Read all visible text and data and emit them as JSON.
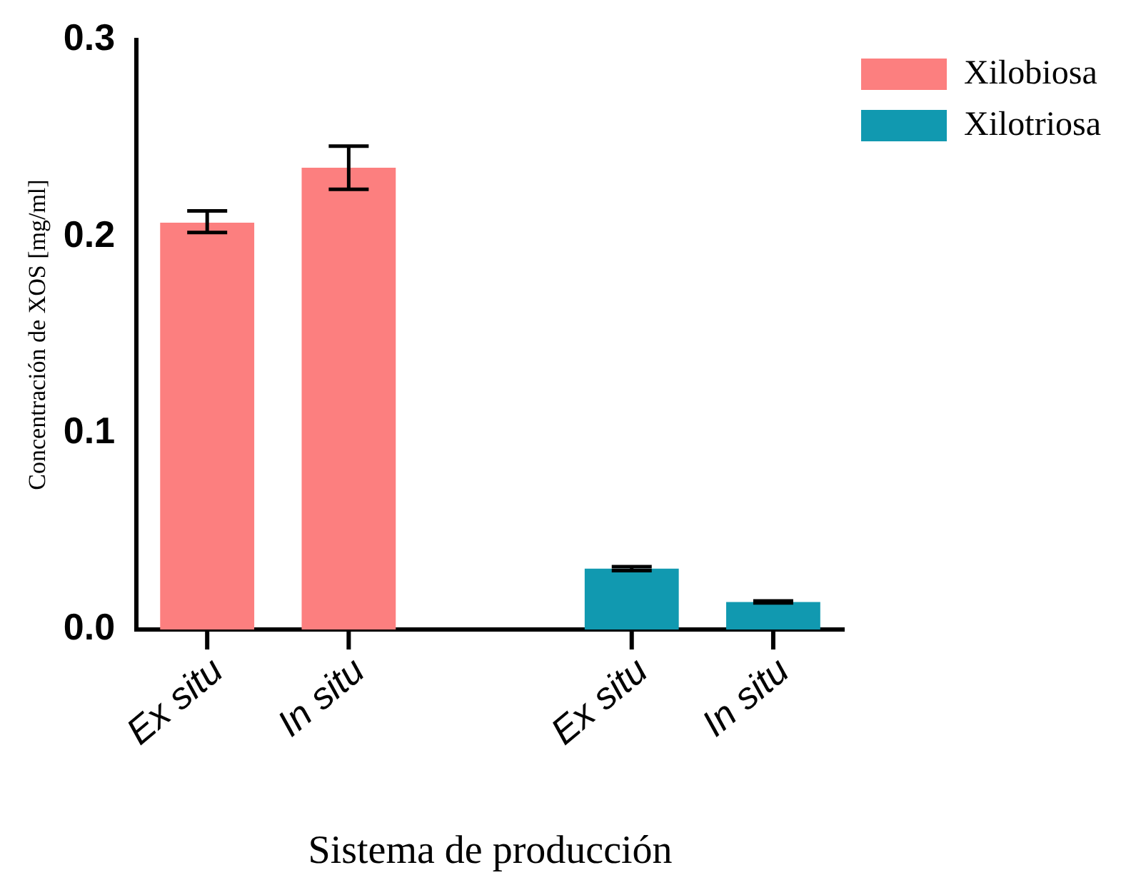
{
  "chart_data": {
    "type": "bar",
    "xlabel": "Sistema de producción",
    "ylabel": "Concentración de XOS [mg/ml]",
    "categories": [
      "Ex situ",
      "In situ",
      null,
      "Ex situ",
      "In situ"
    ],
    "series": [
      {
        "name": "Xilobiosa",
        "color": "#fc7f7f",
        "values": [
          0.207,
          0.235,
          null,
          null,
          null
        ],
        "errors": [
          [
            0.202,
            0.213
          ],
          [
            0.224,
            0.246
          ],
          null,
          null,
          null
        ]
      },
      {
        "name": "Xilotriosa",
        "color": "#1199b0",
        "values": [
          null,
          null,
          null,
          0.031,
          0.014
        ],
        "errors": [
          null,
          null,
          null,
          0.001,
          0.0005
        ]
      }
    ],
    "ylim": [
      0,
      0.3
    ],
    "yticks": [
      {
        "value": 0,
        "label": "0.0"
      },
      {
        "value": 0.1,
        "label": "0.1"
      },
      {
        "value": 0.2,
        "label": "0.2"
      },
      {
        "value": 0.3,
        "label": "0.3"
      }
    ],
    "grid": false,
    "legend": "top right"
  }
}
